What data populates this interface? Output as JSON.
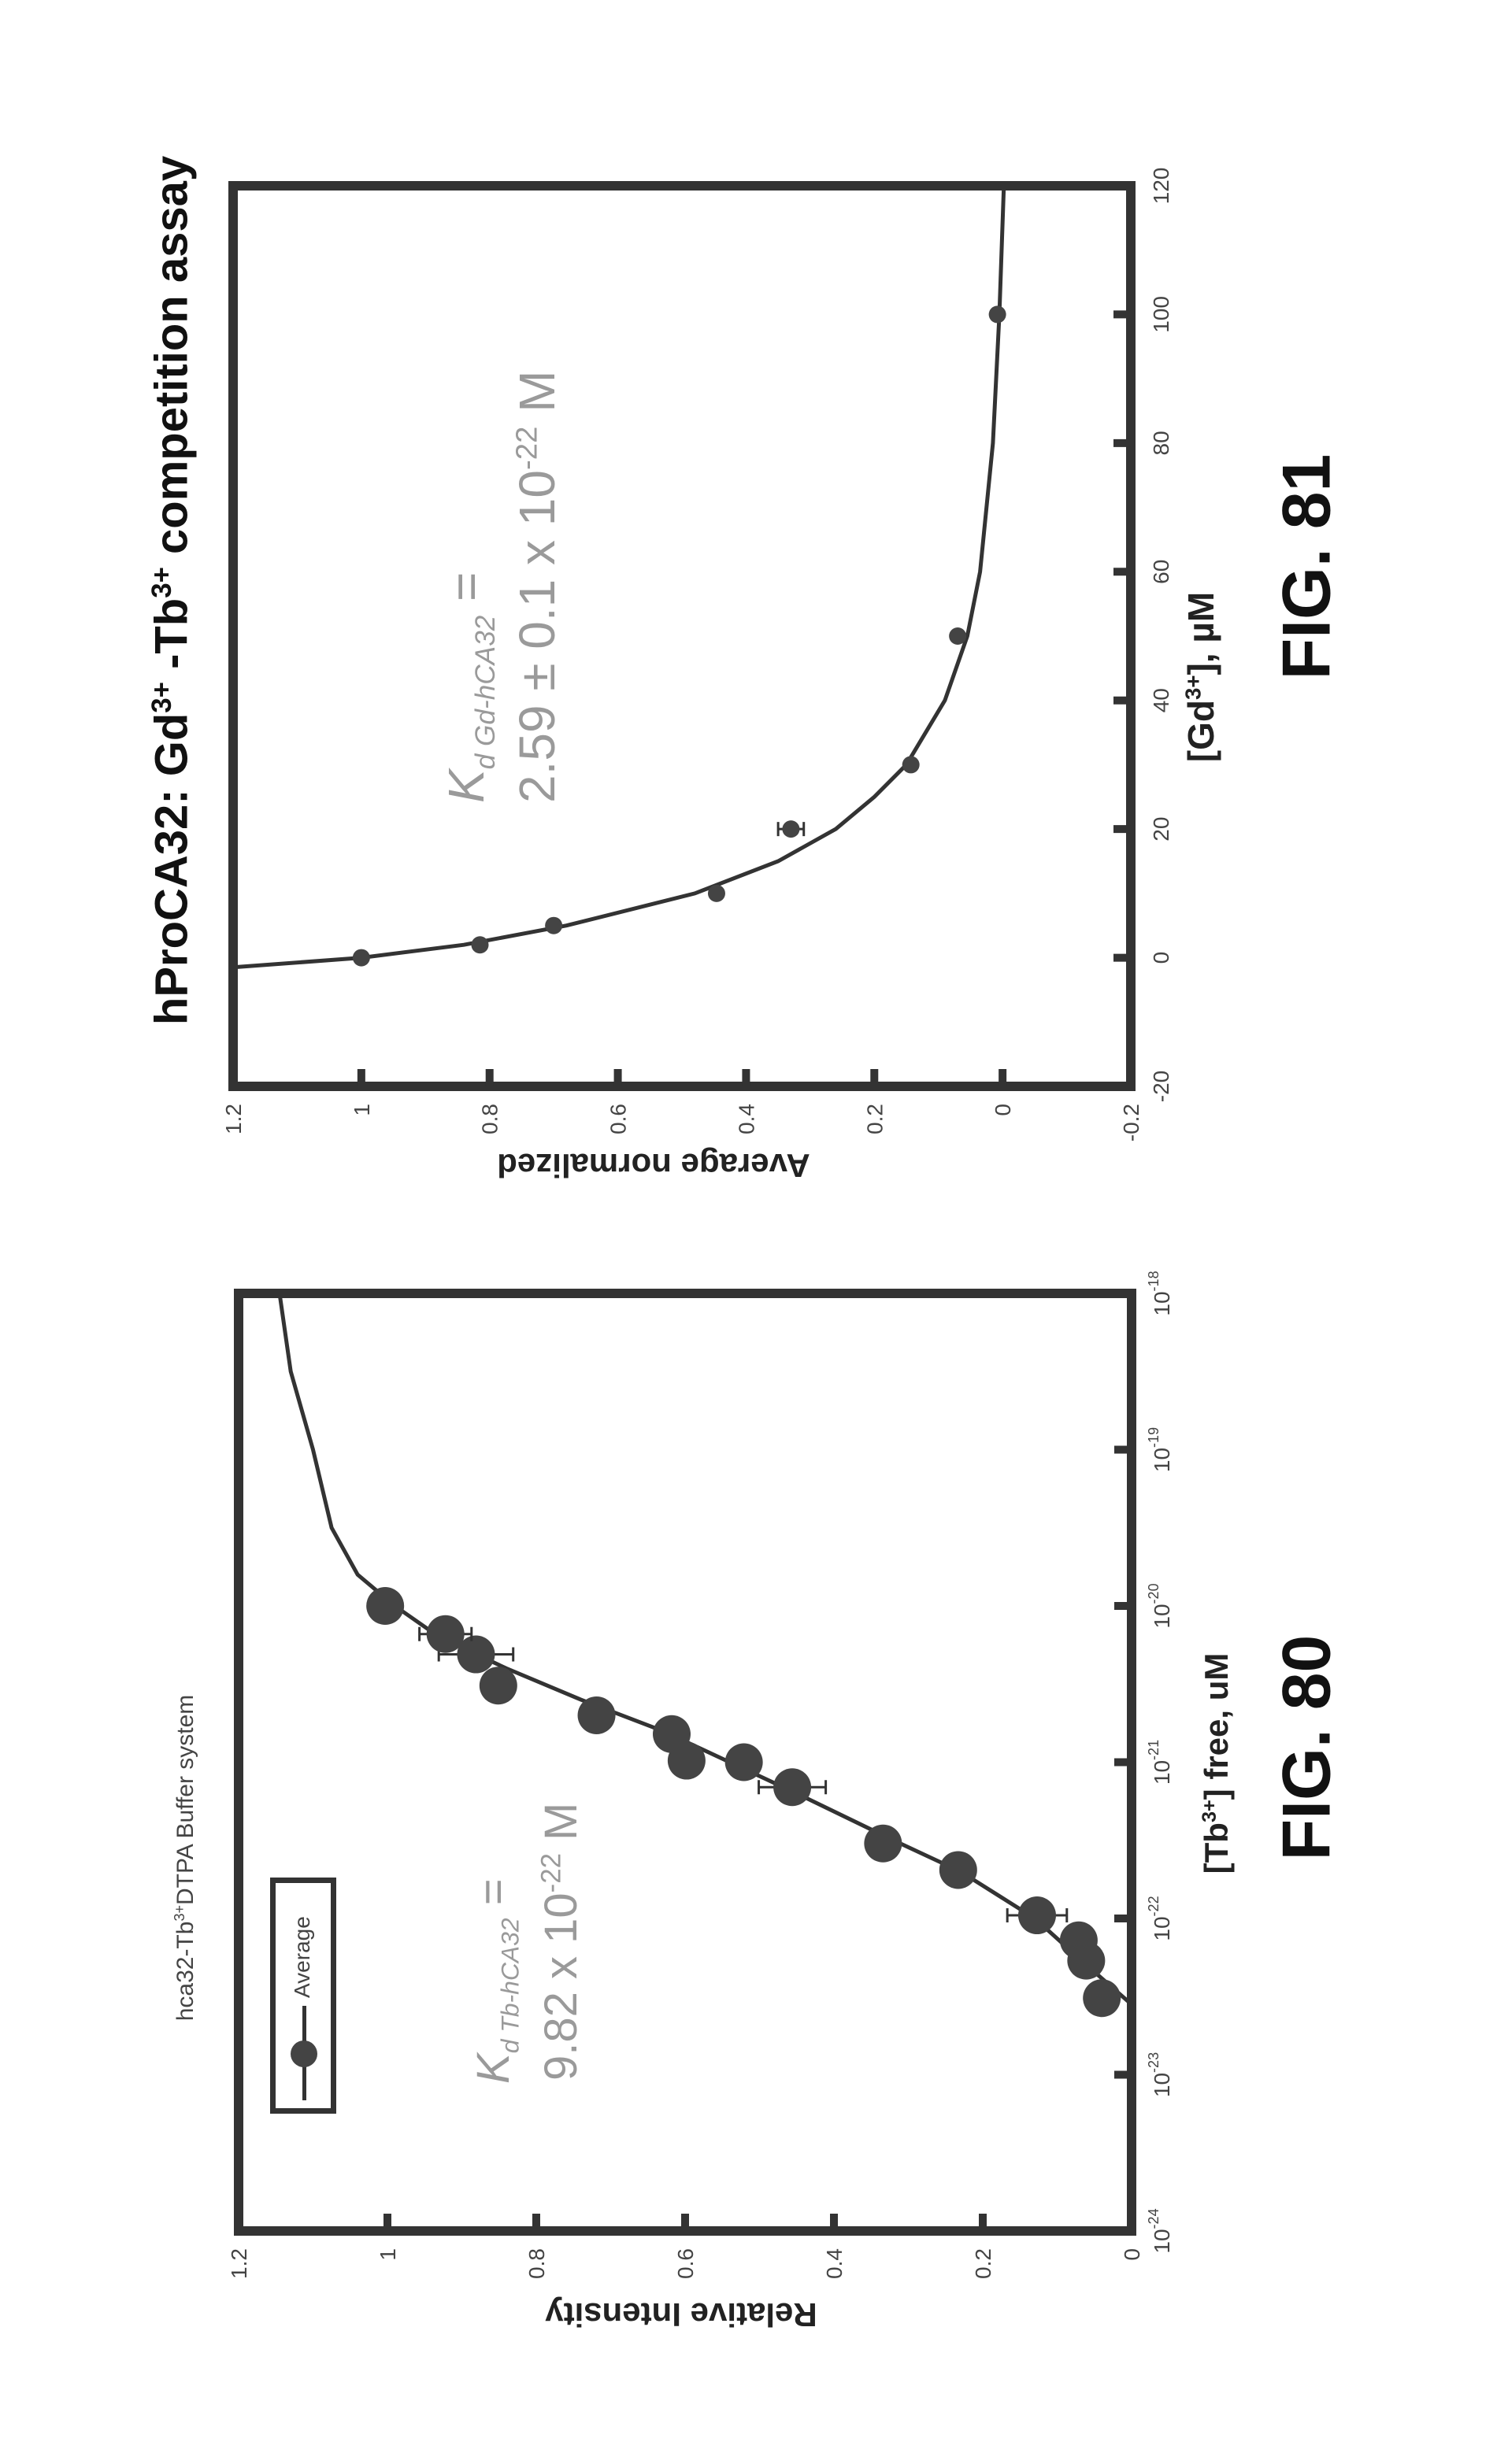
{
  "colors": {
    "frame": "#333333",
    "marker": "#444444",
    "annotation": "#9a9a9a"
  },
  "chart_data": [
    {
      "type": "scatter",
      "figure_label": "FIG. 80",
      "title": {
        "pre": "hca32-Tb",
        "sup": "3+",
        "post": "DTPA Buffer system"
      },
      "xlabel": {
        "pre": "[Tb",
        "sup": "3+",
        "post": "] free, uM"
      },
      "ylabel": "Relative Intensity",
      "xscale": "log",
      "xlim_log10": [
        -24,
        -18
      ],
      "ylim": [
        0,
        1.2
      ],
      "x_ticks": [
        {
          "base": "10",
          "exp": "-24",
          "v": -24
        },
        {
          "base": "10",
          "exp": "-23",
          "v": -23
        },
        {
          "base": "10",
          "exp": "-22",
          "v": -22
        },
        {
          "base": "10",
          "exp": "-21",
          "v": -21
        },
        {
          "base": "10",
          "exp": "-20",
          "v": -20
        },
        {
          "base": "10",
          "exp": "-19",
          "v": -19
        },
        {
          "base": "10",
          "exp": "-18",
          "v": -18
        }
      ],
      "y_ticks": [
        {
          "label": "0",
          "v": 0
        },
        {
          "label": "0.2",
          "v": 0.2
        },
        {
          "label": "0.4",
          "v": 0.4
        },
        {
          "label": "0.6",
          "v": 0.6
        },
        {
          "label": "0.8",
          "v": 0.8
        },
        {
          "label": "1",
          "v": 1
        },
        {
          "label": "1.2",
          "v": 1.2
        }
      ],
      "legend": {
        "label": "Average",
        "placement": "top-left"
      },
      "annotation": {
        "k": "K",
        "sub": "d Tb-hCA32",
        "eq": " =",
        "value": "9.82 x 10",
        "exp": "-22",
        "unit": " M"
      },
      "series": [
        {
          "name": "Average",
          "points": [
            {
              "x_log10": -22.51,
              "y": 0.04
            },
            {
              "x_log10": -22.27,
              "y": 0.061
            },
            {
              "x_log10": -22.14,
              "y": 0.071
            },
            {
              "x_log10": -21.98,
              "y": 0.127,
              "yerr": 0.04
            },
            {
              "x_log10": -21.69,
              "y": 0.233
            },
            {
              "x_log10": -21.52,
              "y": 0.334
            },
            {
              "x_log10": -21.16,
              "y": 0.456,
              "yerr": 0.045
            },
            {
              "x_log10": -21.0,
              "y": 0.521,
              "yerr": 0.02
            },
            {
              "x_log10": -20.99,
              "y": 0.598,
              "yerr": 0.01
            },
            {
              "x_log10": -20.82,
              "y": 0.618
            },
            {
              "x_log10": -20.7,
              "y": 0.719
            },
            {
              "x_log10": -20.51,
              "y": 0.851
            },
            {
              "x_log10": -20.31,
              "y": 0.881,
              "yerr": 0.05
            },
            {
              "x_log10": -20.18,
              "y": 0.922,
              "yerr": 0.035
            },
            {
              "x_log10": -20.0,
              "y": 1.003
            }
          ]
        }
      ],
      "fit_curve": [
        [
          -22.55,
          0
        ],
        [
          -22.3,
          0.06
        ],
        [
          -22.0,
          0.13
        ],
        [
          -21.7,
          0.23
        ],
        [
          -21.5,
          0.32
        ],
        [
          -21.2,
          0.45
        ],
        [
          -21.0,
          0.54
        ],
        [
          -20.8,
          0.63
        ],
        [
          -20.6,
          0.74
        ],
        [
          -20.4,
          0.84
        ],
        [
          -20.2,
          0.93
        ],
        [
          -20.0,
          0.99
        ],
        [
          -19.8,
          1.04
        ],
        [
          -19.5,
          1.075
        ],
        [
          -19.0,
          1.1
        ],
        [
          -18.5,
          1.13
        ],
        [
          -18.0,
          1.145
        ]
      ]
    },
    {
      "type": "scatter",
      "figure_label": "FIG. 81",
      "title": {
        "p1": "hProCA32: Gd",
        "s1": "3+",
        "p2": " -Tb",
        "s2": "3+",
        "p3": " competition assay"
      },
      "xlabel": {
        "pre": "[Gd",
        "sup": "3+",
        "post": "], µM"
      },
      "ylabel": "Average normalized",
      "xlim": [
        -20,
        120
      ],
      "ylim": [
        -0.2,
        1.2
      ],
      "x_ticks": [
        {
          "label": "-20",
          "v": -20
        },
        {
          "label": "0",
          "v": 0
        },
        {
          "label": "20",
          "v": 20
        },
        {
          "label": "40",
          "v": 40
        },
        {
          "label": "60",
          "v": 60
        },
        {
          "label": "80",
          "v": 80
        },
        {
          "label": "100",
          "v": 100
        },
        {
          "label": "120",
          "v": 120
        }
      ],
      "y_ticks": [
        {
          "label": "-0.2",
          "v": -0.2
        },
        {
          "label": "0",
          "v": 0
        },
        {
          "label": "0.2",
          "v": 0.2
        },
        {
          "label": "0.4",
          "v": 0.4
        },
        {
          "label": "0.6",
          "v": 0.6
        },
        {
          "label": "0.8",
          "v": 0.8
        },
        {
          "label": "1",
          "v": 1
        },
        {
          "label": "1.2",
          "v": 1.2
        }
      ],
      "annotation": {
        "k": "K",
        "sub": "d Gd-hCA32",
        "eq": " =",
        "value": "2.59 ± 0.1 x 10",
        "exp": "-22",
        "unit": " M"
      },
      "series": [
        {
          "name": "data",
          "points": [
            {
              "x": 0,
              "y": 1.0
            },
            {
              "x": 2,
              "y": 0.815
            },
            {
              "x": 5,
              "y": 0.7
            },
            {
              "x": 10,
              "y": 0.446
            },
            {
              "x": 20,
              "y": 0.33,
              "yerr": 0.02
            },
            {
              "x": 30,
              "y": 0.143
            },
            {
              "x": 50,
              "y": 0.07
            },
            {
              "x": 100,
              "y": 0.008
            }
          ]
        }
      ],
      "fit_curve": [
        [
          -1.5,
          1.2
        ],
        [
          0,
          1.0
        ],
        [
          2,
          0.84
        ],
        [
          5,
          0.68
        ],
        [
          10,
          0.48
        ],
        [
          15,
          0.35
        ],
        [
          20,
          0.26
        ],
        [
          25,
          0.2
        ],
        [
          30,
          0.15
        ],
        [
          40,
          0.09
        ],
        [
          50,
          0.055
        ],
        [
          60,
          0.035
        ],
        [
          80,
          0.015
        ],
        [
          100,
          0.005
        ],
        [
          120,
          -0.002
        ]
      ]
    }
  ]
}
